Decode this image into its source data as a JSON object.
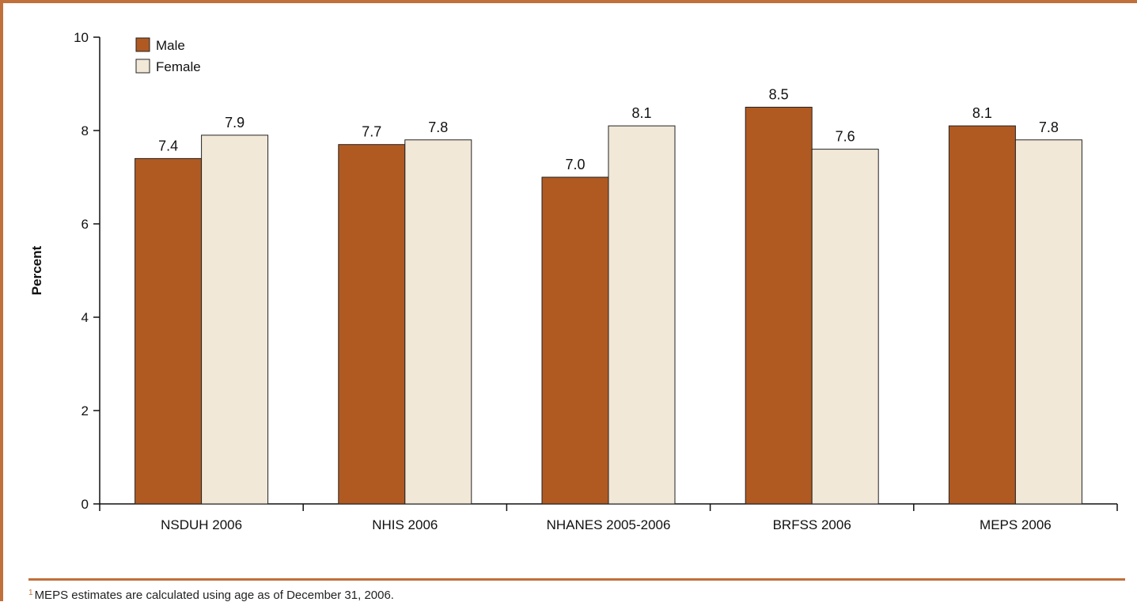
{
  "chart_data": {
    "type": "bar",
    "categories": [
      "NSDUH 2006",
      "NHIS 2006",
      "NHANES 2005-2006",
      "BRFSS 2006",
      "MEPS 2006"
    ],
    "series": [
      {
        "name": "Male",
        "values": [
          7.4,
          7.7,
          7.0,
          8.5,
          8.1
        ],
        "color": "#b05a22"
      },
      {
        "name": "Female",
        "values": [
          7.9,
          7.8,
          8.1,
          7.6,
          7.8
        ],
        "color": "#f2e8d8"
      }
    ],
    "value_labels": {
      "Male": [
        "7.4",
        "7.7",
        "7.0",
        "8.5",
        "8.1"
      ],
      "Female": [
        "7.9",
        "7.8",
        "8.1",
        "7.6",
        "7.8"
      ]
    },
    "title": "",
    "xlabel": "",
    "ylabel": "Percent",
    "ylim": [
      0,
      10
    ],
    "yticks": [
      "0",
      "2",
      "4",
      "6",
      "8",
      "10"
    ],
    "grid": false,
    "legend": "top-left"
  },
  "colors": {
    "accent": "#c0703a",
    "bar_outline": "#222222"
  },
  "footnote": {
    "marker": "1",
    "text": "MEPS estimates are calculated using age as of December 31, 2006."
  }
}
